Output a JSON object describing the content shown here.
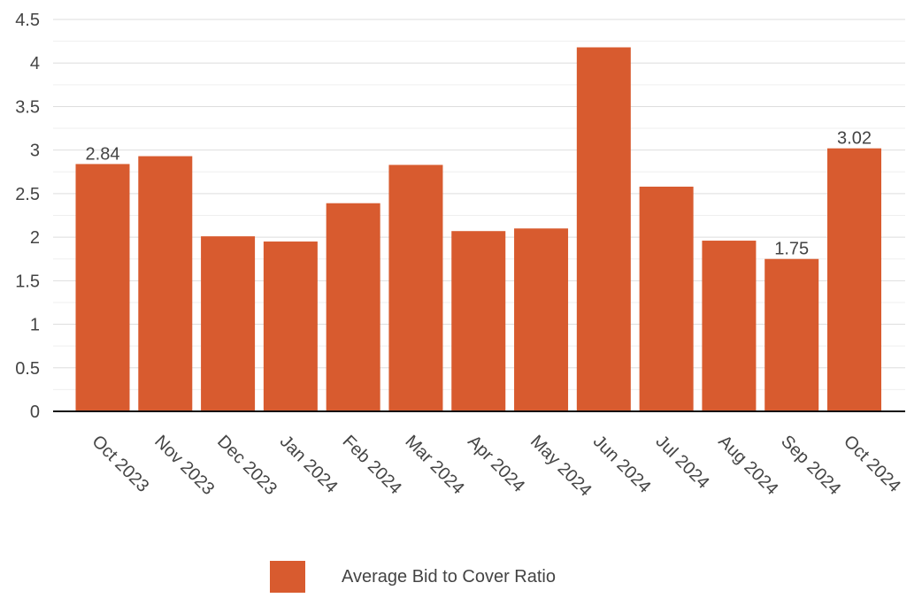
{
  "chart_data": {
    "type": "bar",
    "categories": [
      "Oct 2023",
      "Nov 2023",
      "Dec 2023",
      "Jan 2024",
      "Feb 2024",
      "Mar 2024",
      "Apr 2024",
      "May 2024",
      "Jun 2024",
      "Jul 2024",
      "Aug 2024",
      "Sep 2024",
      "Oct 2024"
    ],
    "series": [
      {
        "name": "Average Bid to Cover Ratio",
        "values": [
          2.84,
          2.93,
          2.01,
          1.95,
          2.39,
          2.83,
          2.07,
          2.1,
          4.18,
          2.58,
          1.96,
          1.75,
          3.02
        ],
        "color": "#d85b2f"
      }
    ],
    "data_labels": [
      {
        "index": 0,
        "text": "2.84"
      },
      {
        "index": 11,
        "text": "1.75"
      },
      {
        "index": 12,
        "text": "3.02"
      }
    ],
    "y_ticks": [
      "0",
      "0.5",
      "1",
      "1.5",
      "2",
      "2.5",
      "3",
      "3.5",
      "4",
      "4.5"
    ],
    "ylim": [
      0,
      4.5
    ],
    "grid": true,
    "legend_position": "bottom-center",
    "title": "",
    "xlabel": "",
    "ylabel": ""
  }
}
